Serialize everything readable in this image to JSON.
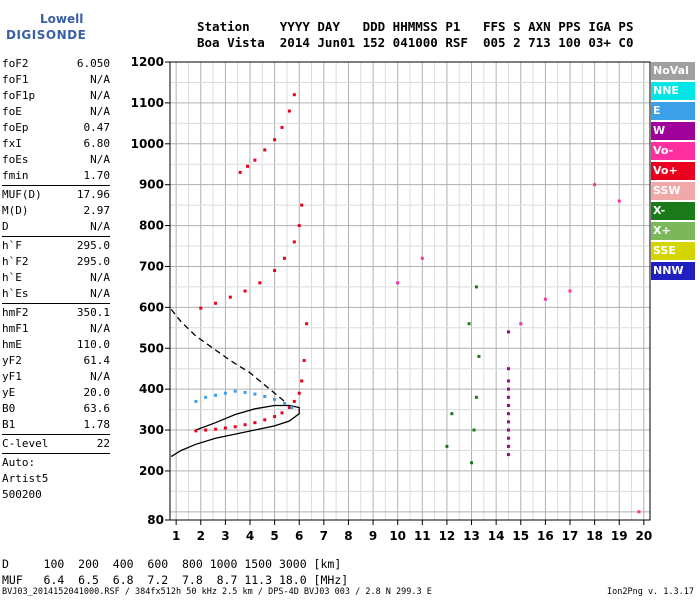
{
  "logo": {
    "line1": "Lowell",
    "line2": "DIGISONDE"
  },
  "header": {
    "line1": "Station    YYYY DAY   DDD HHMMSS P1   FFS S AXN PPS IGA PS",
    "line2": "Boa Vista  2014 Jun01 152 041000 RSF  005 2 713 100 03+ C0"
  },
  "params": {
    "group1": [
      {
        "k": "foF2",
        "v": "6.050"
      },
      {
        "k": "foF1",
        "v": "N/A"
      },
      {
        "k": "foF1p",
        "v": "N/A"
      },
      {
        "k": "foE",
        "v": "N/A"
      },
      {
        "k": "foEp",
        "v": "0.47"
      },
      {
        "k": "fxI",
        "v": "6.80"
      },
      {
        "k": "foEs",
        "v": "N/A"
      },
      {
        "k": "fmin",
        "v": "1.70"
      }
    ],
    "group2": [
      {
        "k": "MUF(D)",
        "v": "17.96"
      },
      {
        "k": "M(D)",
        "v": "2.97"
      },
      {
        "k": "D",
        "v": "N/A"
      }
    ],
    "group3": [
      {
        "k": "h`F",
        "v": "295.0"
      },
      {
        "k": "h`F2",
        "v": "295.0"
      },
      {
        "k": "h`E",
        "v": "N/A"
      },
      {
        "k": "h`Es",
        "v": "N/A"
      }
    ],
    "group4": [
      {
        "k": "hmF2",
        "v": "350.1"
      },
      {
        "k": "hmF1",
        "v": "N/A"
      },
      {
        "k": "hmE",
        "v": "110.0"
      },
      {
        "k": "yF2",
        "v": "61.4"
      },
      {
        "k": "yF1",
        "v": "N/A"
      },
      {
        "k": "yE",
        "v": "20.0"
      },
      {
        "k": "B0",
        "v": "63.6"
      },
      {
        "k": "B1",
        "v": "1.78"
      }
    ],
    "group5": [
      {
        "k": "C-level",
        "v": "22"
      }
    ],
    "auto": [
      "Auto:",
      "Artist5",
      "500200"
    ]
  },
  "dmuf": {
    "line1": "D     100  200  400  600  800 1000 1500 3000 [km]",
    "line2": "MUF   6.4  6.5  6.8  7.2  7.8  8.7 11.3 18.0 [MHz]"
  },
  "footer": {
    "left": "BVJ03_2014152041000.RSF / 384fx512h 50 kHz 2.5 km / DPS-4D BVJ03 003 / 2.8 N 299.3 E",
    "right": "Ion2Png v. 1.3.17"
  },
  "legend": [
    {
      "label": "NoVal",
      "color": "#a0a0a0"
    },
    {
      "label": "NNE",
      "color": "#00e6e6"
    },
    {
      "label": "E",
      "color": "#3aa0e8"
    },
    {
      "label": "W",
      "color": "#a0009a"
    },
    {
      "label": "Vo-",
      "color": "#ff2fa0"
    },
    {
      "label": "Vo+",
      "color": "#e8001e"
    },
    {
      "label": "SSW",
      "color": "#f0a8a8"
    },
    {
      "label": "X-",
      "color": "#1a7a1a"
    },
    {
      "label": "X+",
      "color": "#7ab85a"
    },
    {
      "label": "SSE",
      "color": "#d4d400"
    },
    {
      "label": "NNW",
      "color": "#2020c0"
    }
  ],
  "chart_data": {
    "type": "scatter",
    "xlabel": "",
    "ylabel": "",
    "xlim": [
      0.75,
      20.25
    ],
    "ylim": [
      80,
      1200
    ],
    "x_ticks": [
      1,
      2,
      3,
      4,
      5,
      6,
      7,
      8,
      9,
      10,
      11,
      12,
      13,
      14,
      15,
      16,
      17,
      18,
      19,
      20
    ],
    "y_ticks": [
      80,
      200,
      300,
      400,
      500,
      600,
      700,
      800,
      900,
      1000,
      1100,
      1200
    ],
    "grid": true,
    "series": [
      {
        "color": "#e8001e",
        "x": [
          1.8,
          2.2,
          2.6,
          3.0,
          3.4,
          3.8,
          4.2,
          4.6,
          5.0,
          5.3,
          5.6,
          5.8,
          6.0,
          6.1,
          6.2,
          6.3
        ],
        "y": [
          298,
          300,
          302,
          305,
          308,
          313,
          318,
          325,
          333,
          342,
          355,
          370,
          390,
          420,
          470,
          560
        ]
      },
      {
        "color": "#3aa0e8",
        "x": [
          1.8,
          2.2,
          2.6,
          3.0,
          3.4,
          3.8,
          4.2,
          4.6,
          5.0,
          5.4,
          5.7
        ],
        "y": [
          370,
          380,
          385,
          390,
          395,
          392,
          388,
          382,
          375,
          365,
          355
        ]
      },
      {
        "color": "#e8001e",
        "x": [
          2.0,
          2.6,
          3.2,
          3.8,
          4.4,
          5.0,
          5.4,
          5.8,
          6.0,
          6.1
        ],
        "y": [
          598,
          610,
          625,
          640,
          660,
          690,
          720,
          760,
          800,
          850
        ]
      },
      {
        "color": "#e8001e",
        "x": [
          3.6,
          3.9,
          4.2,
          4.6,
          5.0,
          5.3,
          5.6,
          5.8
        ],
        "y": [
          930,
          945,
          960,
          985,
          1010,
          1040,
          1080,
          1120
        ]
      },
      {
        "color": "#a0009a",
        "x": [
          14.5,
          14.5,
          14.5,
          14.5,
          14.5,
          14.5,
          14.5,
          14.5,
          14.5,
          14.5,
          14.5,
          14.5
        ],
        "y": [
          240,
          260,
          280,
          300,
          320,
          340,
          360,
          380,
          400,
          420,
          450,
          540
        ]
      },
      {
        "color": "#1a7a1a",
        "x": [
          13.0,
          13.1,
          13.2,
          13.3,
          12.9,
          13.2,
          12.0,
          12.2
        ],
        "y": [
          220,
          300,
          380,
          480,
          560,
          650,
          260,
          340
        ]
      },
      {
        "color": "#ff2fa0",
        "x": [
          10.0,
          11.0,
          15.0,
          16.0,
          17.0,
          18.0,
          19.0,
          19.8
        ],
        "y": [
          660,
          720,
          560,
          620,
          640,
          900,
          860,
          100
        ]
      }
    ],
    "curves": [
      {
        "name": "",
        "style": "solid",
        "x": [
          0.8,
          1.2,
          1.8,
          2.6,
          3.4,
          4.2,
          5.0,
          5.6,
          6.0,
          6.0,
          5.6,
          5.0,
          4.2,
          3.4,
          2.6,
          1.8
        ],
        "y": [
          235,
          250,
          265,
          280,
          290,
          300,
          310,
          322,
          340,
          355,
          360,
          360,
          352,
          338,
          318,
          300
        ]
      },
      {
        "name": "",
        "style": "dashed",
        "x": [
          0.8,
          1.2,
          1.8,
          2.5,
          3.2,
          4.0,
          4.8,
          5.4
        ],
        "y": [
          595,
          565,
          530,
          500,
          470,
          440,
          400,
          370
        ]
      }
    ]
  }
}
